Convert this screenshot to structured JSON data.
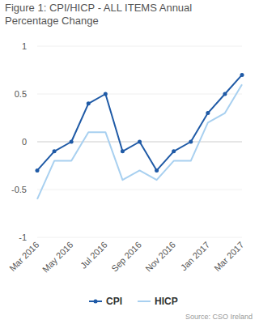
{
  "chart_data": {
    "type": "line",
    "title": "Figure 1: CPI/HICP - ALL ITEMS Annual Percentage Change",
    "source": "Source: CSO Ireland",
    "categories": [
      "Mar 2016",
      null,
      "May 2016",
      null,
      "Jul 2016",
      null,
      "Sep 2016",
      null,
      "Nov 2016",
      null,
      "Jan 2017",
      null,
      "Mar 2017"
    ],
    "series": [
      {
        "name": "CPI",
        "color": "#1f5aa6",
        "marker": "circle",
        "values": [
          -0.3,
          -0.1,
          0.0,
          0.4,
          0.5,
          -0.1,
          0.0,
          -0.3,
          -0.1,
          0.0,
          0.3,
          0.5,
          0.7
        ]
      },
      {
        "name": "HICP",
        "color": "#a8d0f0",
        "marker": "none",
        "values": [
          -0.6,
          -0.2,
          -0.2,
          0.1,
          0.1,
          -0.4,
          -0.3,
          -0.4,
          -0.2,
          -0.2,
          0.2,
          0.3,
          0.6
        ]
      }
    ],
    "ylim": [
      -1,
      1
    ],
    "yticks": [
      -1,
      -0.5,
      0,
      0.5,
      1
    ],
    "grid": true,
    "legend": "bottom"
  }
}
